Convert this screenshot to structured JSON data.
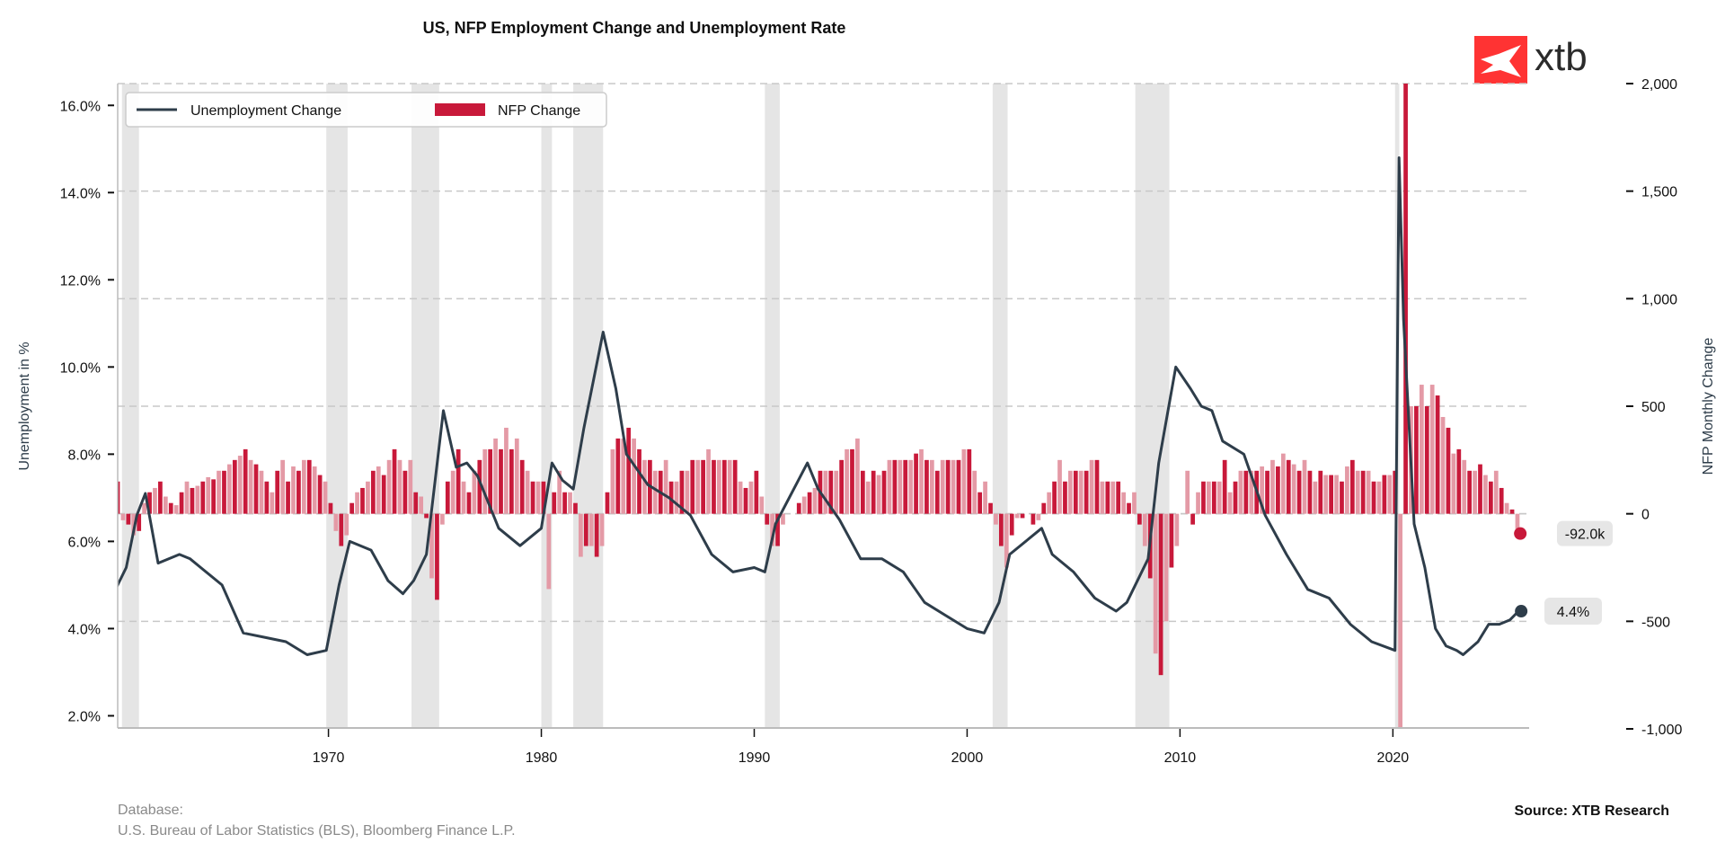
{
  "title": "US, NFP Employment Change and Unemployment Rate",
  "logo_text": "xtb",
  "legend": {
    "line": "Unemployment Change",
    "bars": "NFP Change",
    "placement": "top-left"
  },
  "footer": {
    "database_label": "Database:",
    "database_sources": "U.S. Bureau of Labor Statistics (BLS), Bloomberg Finance L.P.",
    "source": "Source: XTB Research"
  },
  "colors": {
    "line": "#2e3d4a",
    "bar_dark": "#c8193a",
    "bar_light": "#e49aa6",
    "recession": "#e5e5e5",
    "logo": "#ff3333"
  },
  "chart_data": {
    "type": "bar+line",
    "title": "US, NFP Employment Change and Unemployment Rate",
    "ylabel_left": "Unemployment in %",
    "ylabel_right": "NFP Monthly Change",
    "xlim": [
      1960.1,
      2026.4
    ],
    "ylim_left": [
      1.7,
      16.5
    ],
    "ylim_right": [
      -1000,
      2000
    ],
    "x_ticks": [
      "1970",
      "1980",
      "1990",
      "2000",
      "2010",
      "2020"
    ],
    "x_tick_values": [
      1970,
      1980,
      1990,
      2000,
      2010,
      2020
    ],
    "left_ticks": [
      "2.0%",
      "4.0%",
      "6.0%",
      "8.0%",
      "10.0%",
      "12.0%",
      "14.0%",
      "16.0%"
    ],
    "left_tick_values": [
      2,
      4,
      6,
      8,
      10,
      12,
      14,
      16
    ],
    "right_ticks": [
      "-1,000",
      "-500",
      "0",
      "500",
      "1,000",
      "1,500",
      "2,000"
    ],
    "right_tick_values": [
      -1000,
      -500,
      0,
      500,
      1000,
      1500,
      2000
    ],
    "grid": "horizontal dashed at right-axis ticks",
    "recessions": [
      [
        1960.3,
        1961.1
      ],
      [
        1969.9,
        1970.9
      ],
      [
        1973.9,
        1975.2
      ],
      [
        1980.0,
        1980.5
      ],
      [
        1981.5,
        1982.9
      ],
      [
        1990.5,
        1991.2
      ],
      [
        2001.2,
        2001.9
      ],
      [
        2007.9,
        2009.5
      ],
      [
        2020.1,
        2020.3
      ]
    ],
    "unemployment_rate": [
      [
        1960.0,
        4.9
      ],
      [
        1960.5,
        5.4
      ],
      [
        1961.0,
        6.6
      ],
      [
        1961.4,
        7.1
      ],
      [
        1962.0,
        5.5
      ],
      [
        1963.0,
        5.7
      ],
      [
        1963.5,
        5.6
      ],
      [
        1964.0,
        5.4
      ],
      [
        1965.0,
        5.0
      ],
      [
        1966.0,
        3.9
      ],
      [
        1967.0,
        3.8
      ],
      [
        1968.0,
        3.7
      ],
      [
        1969.0,
        3.4
      ],
      [
        1969.9,
        3.5
      ],
      [
        1970.5,
        5.0
      ],
      [
        1971.0,
        6.0
      ],
      [
        1972.0,
        5.8
      ],
      [
        1972.8,
        5.1
      ],
      [
        1973.5,
        4.8
      ],
      [
        1974.0,
        5.1
      ],
      [
        1974.6,
        5.7
      ],
      [
        1975.4,
        9.0
      ],
      [
        1976.0,
        7.7
      ],
      [
        1976.5,
        7.8
      ],
      [
        1977.0,
        7.5
      ],
      [
        1978.0,
        6.3
      ],
      [
        1979.0,
        5.9
      ],
      [
        1980.0,
        6.3
      ],
      [
        1980.5,
        7.8
      ],
      [
        1981.0,
        7.4
      ],
      [
        1981.5,
        7.2
      ],
      [
        1982.0,
        8.6
      ],
      [
        1982.9,
        10.8
      ],
      [
        1983.5,
        9.5
      ],
      [
        1984.0,
        8.0
      ],
      [
        1985.0,
        7.3
      ],
      [
        1986.0,
        7.0
      ],
      [
        1987.0,
        6.6
      ],
      [
        1988.0,
        5.7
      ],
      [
        1989.0,
        5.3
      ],
      [
        1990.0,
        5.4
      ],
      [
        1990.5,
        5.3
      ],
      [
        1991.0,
        6.4
      ],
      [
        1992.5,
        7.8
      ],
      [
        1993.0,
        7.2
      ],
      [
        1994.0,
        6.5
      ],
      [
        1995.0,
        5.6
      ],
      [
        1996.0,
        5.6
      ],
      [
        1997.0,
        5.3
      ],
      [
        1998.0,
        4.6
      ],
      [
        1999.0,
        4.3
      ],
      [
        2000.0,
        4.0
      ],
      [
        2000.8,
        3.9
      ],
      [
        2001.5,
        4.6
      ],
      [
        2002.0,
        5.7
      ],
      [
        2003.5,
        6.3
      ],
      [
        2004.0,
        5.7
      ],
      [
        2005.0,
        5.3
      ],
      [
        2006.0,
        4.7
      ],
      [
        2007.0,
        4.4
      ],
      [
        2007.5,
        4.6
      ],
      [
        2008.5,
        5.6
      ],
      [
        2009.0,
        7.8
      ],
      [
        2009.8,
        10.0
      ],
      [
        2010.5,
        9.5
      ],
      [
        2011.0,
        9.1
      ],
      [
        2011.5,
        9.0
      ],
      [
        2012.0,
        8.3
      ],
      [
        2013.0,
        8.0
      ],
      [
        2014.0,
        6.6
      ],
      [
        2015.0,
        5.7
      ],
      [
        2016.0,
        4.9
      ],
      [
        2017.0,
        4.7
      ],
      [
        2018.0,
        4.1
      ],
      [
        2019.0,
        3.7
      ],
      [
        2020.1,
        3.5
      ],
      [
        2020.29,
        14.8
      ],
      [
        2020.5,
        11.1
      ],
      [
        2021.0,
        6.4
      ],
      [
        2021.5,
        5.4
      ],
      [
        2022.0,
        4.0
      ],
      [
        2022.5,
        3.6
      ],
      [
        2023.0,
        3.5
      ],
      [
        2023.3,
        3.4
      ],
      [
        2024.0,
        3.7
      ],
      [
        2024.5,
        4.1
      ],
      [
        2025.0,
        4.1
      ],
      [
        2025.5,
        4.2
      ],
      [
        2025.9,
        4.4
      ]
    ],
    "nfp_start_year": 1960,
    "nfp_quarterly_avg": [
      [
        150,
        -30,
        -50,
        -100
      ],
      [
        -80,
        50,
        100,
        120
      ],
      [
        150,
        80,
        50,
        40
      ],
      [
        100,
        150,
        120,
        130
      ],
      [
        150,
        170,
        160,
        200
      ],
      [
        200,
        230,
        250,
        270
      ],
      [
        300,
        250,
        230,
        200
      ],
      [
        150,
        100,
        200,
        250
      ],
      [
        150,
        220,
        200,
        250
      ],
      [
        250,
        220,
        180,
        150
      ],
      [
        50,
        -80,
        -150,
        -100
      ],
      [
        50,
        100,
        120,
        150
      ],
      [
        200,
        220,
        180,
        250
      ],
      [
        300,
        250,
        200,
        250
      ],
      [
        100,
        80,
        -20,
        -300
      ],
      [
        -400,
        -50,
        150,
        200
      ],
      [
        300,
        150,
        100,
        200
      ],
      [
        250,
        300,
        300,
        350
      ],
      [
        300,
        400,
        300,
        350
      ],
      [
        250,
        200,
        150,
        150
      ],
      [
        150,
        -350,
        100,
        200
      ],
      [
        100,
        100,
        50,
        -200
      ],
      [
        -150,
        -150,
        -200,
        -150
      ],
      [
        100,
        300,
        350,
        350
      ],
      [
        400,
        350,
        300,
        250
      ],
      [
        250,
        200,
        200,
        250
      ],
      [
        150,
        150,
        200,
        200
      ],
      [
        250,
        250,
        250,
        300
      ],
      [
        250,
        250,
        250,
        250
      ],
      [
        250,
        150,
        120,
        150
      ],
      [
        200,
        80,
        -50,
        -150
      ],
      [
        -150,
        -50,
        0,
        0
      ],
      [
        50,
        80,
        100,
        120
      ],
      [
        200,
        200,
        200,
        200
      ],
      [
        250,
        300,
        300,
        350
      ],
      [
        200,
        150,
        200,
        180
      ],
      [
        200,
        250,
        250,
        250
      ],
      [
        250,
        250,
        280,
        300
      ],
      [
        250,
        250,
        200,
        250
      ],
      [
        250,
        250,
        250,
        300
      ],
      [
        300,
        200,
        100,
        150
      ],
      [
        50,
        -50,
        -150,
        -250
      ],
      [
        -100,
        -20,
        -20,
        0
      ],
      [
        -50,
        -30,
        50,
        100
      ],
      [
        150,
        250,
        150,
        200
      ],
      [
        200,
        200,
        200,
        250
      ],
      [
        250,
        150,
        150,
        150
      ],
      [
        150,
        100,
        50,
        100
      ],
      [
        -50,
        -150,
        -300,
        -650
      ],
      [
        -750,
        -500,
        -250,
        -150
      ],
      [
        0,
        200,
        -50,
        100
      ],
      [
        150,
        150,
        150,
        150
      ],
      [
        250,
        100,
        150,
        200
      ],
      [
        200,
        200,
        200,
        220
      ],
      [
        200,
        250,
        220,
        280
      ],
      [
        250,
        230,
        200,
        250
      ],
      [
        200,
        150,
        200,
        180
      ],
      [
        180,
        180,
        150,
        220
      ],
      [
        250,
        200,
        200,
        200
      ],
      [
        150,
        150,
        180,
        180
      ],
      [
        200,
        -4400,
        2100,
        500
      ],
      [
        500,
        600,
        500,
        600
      ],
      [
        550,
        450,
        400,
        280
      ],
      [
        300,
        250,
        200,
        200
      ],
      [
        230,
        180,
        150,
        200
      ],
      [
        120,
        50,
        20,
        -92
      ]
    ],
    "last_values": {
      "nfp": -92.0,
      "nfp_label": "-92.0k",
      "unemployment": 4.4,
      "unemployment_label": "4.4%"
    }
  }
}
